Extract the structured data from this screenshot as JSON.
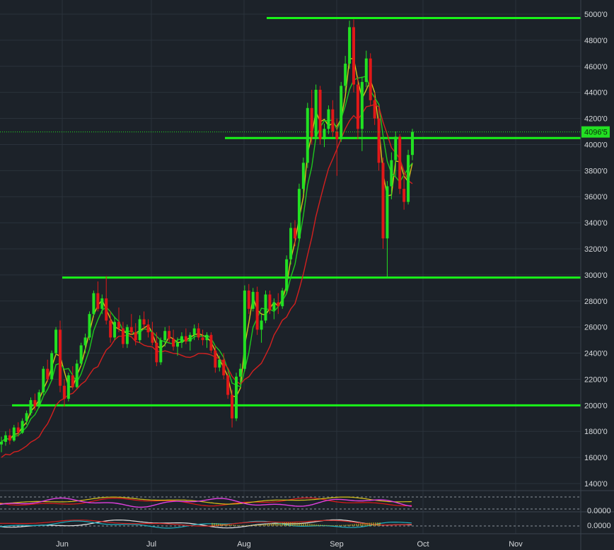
{
  "chart_data": {
    "type": "candlestick",
    "instrument": "",
    "ylim": [
      1300,
      5050
    ],
    "y_ticks": [
      1400,
      1600,
      1800,
      2000,
      2200,
      2400,
      2600,
      2800,
      3000,
      3200,
      3400,
      3600,
      3800,
      4000,
      4200,
      4400,
      4600,
      4800,
      5000
    ],
    "y_tick_labels": [
      "1400'0",
      "1600'0",
      "1800'0",
      "2000'0",
      "2200'0",
      "2400'0",
      "2600'0",
      "2800'0",
      "3000'0",
      "3200'0",
      "3400'0",
      "3600'0",
      "3800'0",
      "4000'0",
      "4200'0",
      "4400'0",
      "4600'0",
      "4800'0",
      "5000'0"
    ],
    "x_tick_labels": [
      "Jun",
      "Jul",
      "Aug",
      "Sep",
      "Oct",
      "Nov"
    ],
    "last_price": 4096.5,
    "last_price_label": "4096'5",
    "grid": true,
    "colors": {
      "background": "#1c2229",
      "grid": "#2a323b",
      "up": "#22e022",
      "down": "#e01818",
      "level_line": "#19f219",
      "ma_fast": "#d8c21a",
      "ma_mid": "#1ec71e",
      "ma_slow": "#d4201f"
    },
    "horizontal_levels": [
      {
        "price": 4970
      },
      {
        "price": 4050
      },
      {
        "price": 2980
      },
      {
        "price": 2000
      }
    ],
    "candles_ohlc": [
      [
        1700,
        1760,
        1640,
        1720
      ],
      [
        1720,
        1800,
        1690,
        1770
      ],
      [
        1770,
        1820,
        1700,
        1730
      ],
      [
        1730,
        1850,
        1720,
        1830
      ],
      [
        1830,
        1870,
        1760,
        1790
      ],
      [
        1790,
        1900,
        1780,
        1880
      ],
      [
        1880,
        1960,
        1850,
        1940
      ],
      [
        1940,
        2060,
        1920,
        2040
      ],
      [
        2040,
        2090,
        1960,
        1990
      ],
      [
        1990,
        2120,
        1980,
        2100
      ],
      [
        2100,
        2300,
        2080,
        2280
      ],
      [
        2280,
        2350,
        2180,
        2200
      ],
      [
        2200,
        2420,
        2190,
        2400
      ],
      [
        2400,
        2600,
        2380,
        2580
      ],
      [
        2580,
        2650,
        2100,
        2150
      ],
      [
        2150,
        2200,
        1990,
        2050
      ],
      [
        2050,
        2250,
        2030,
        2230
      ],
      [
        2230,
        2300,
        2120,
        2140
      ],
      [
        2140,
        2350,
        2130,
        2320
      ],
      [
        2320,
        2480,
        2300,
        2460
      ],
      [
        2460,
        2550,
        2400,
        2520
      ],
      [
        2520,
        2720,
        2500,
        2700
      ],
      [
        2700,
        2880,
        2680,
        2860
      ],
      [
        2860,
        2950,
        2720,
        2740
      ],
      [
        2740,
        2850,
        2700,
        2820
      ],
      [
        2820,
        2990,
        2620,
        2650
      ],
      [
        2650,
        2720,
        2480,
        2520
      ],
      [
        2520,
        2680,
        2500,
        2640
      ],
      [
        2640,
        2750,
        2560,
        2590
      ],
      [
        2590,
        2640,
        2440,
        2470
      ],
      [
        2470,
        2620,
        2440,
        2600
      ],
      [
        2600,
        2700,
        2540,
        2560
      ],
      [
        2560,
        2630,
        2460,
        2500
      ],
      [
        2500,
        2690,
        2480,
        2660
      ],
      [
        2660,
        2720,
        2580,
        2620
      ],
      [
        2620,
        2660,
        2520,
        2560
      ],
      [
        2560,
        2640,
        2460,
        2480
      ],
      [
        2480,
        2560,
        2300,
        2330
      ],
      [
        2330,
        2520,
        2310,
        2500
      ],
      [
        2500,
        2600,
        2450,
        2570
      ],
      [
        2570,
        2610,
        2480,
        2510
      ],
      [
        2510,
        2580,
        2420,
        2450
      ],
      [
        2450,
        2520,
        2380,
        2480
      ],
      [
        2480,
        2560,
        2440,
        2530
      ],
      [
        2530,
        2590,
        2470,
        2490
      ],
      [
        2490,
        2560,
        2420,
        2540
      ],
      [
        2540,
        2620,
        2500,
        2590
      ],
      [
        2590,
        2630,
        2500,
        2520
      ],
      [
        2520,
        2580,
        2460,
        2500
      ],
      [
        2500,
        2560,
        2440,
        2540
      ],
      [
        2540,
        2560,
        2400,
        2420
      ],
      [
        2420,
        2460,
        2250,
        2290
      ],
      [
        2290,
        2380,
        2260,
        2350
      ],
      [
        2350,
        2400,
        2200,
        2230
      ],
      [
        2230,
        2260,
        2050,
        2080
      ],
      [
        2080,
        2120,
        1830,
        1900
      ],
      [
        1900,
        2250,
        1880,
        2220
      ],
      [
        2220,
        2320,
        2150,
        2280
      ],
      [
        2280,
        2920,
        2260,
        2880
      ],
      [
        2880,
        2930,
        2700,
        2740
      ],
      [
        2740,
        2900,
        2720,
        2870
      ],
      [
        2870,
        2910,
        2540,
        2580
      ],
      [
        2580,
        2700,
        2480,
        2650
      ],
      [
        2650,
        2880,
        2630,
        2850
      ],
      [
        2850,
        2880,
        2700,
        2730
      ],
      [
        2730,
        2820,
        2660,
        2790
      ],
      [
        2790,
        2860,
        2700,
        2760
      ],
      [
        2760,
        2900,
        2740,
        2880
      ],
      [
        2880,
        3150,
        2860,
        3120
      ],
      [
        3120,
        3400,
        3080,
        3360
      ],
      [
        3360,
        3420,
        3220,
        3280
      ],
      [
        3280,
        3700,
        3260,
        3660
      ],
      [
        3660,
        3900,
        3620,
        3860
      ],
      [
        3860,
        4320,
        3820,
        4280
      ],
      [
        4280,
        4420,
        4000,
        4060
      ],
      [
        4060,
        4460,
        4040,
        4420
      ],
      [
        4420,
        4450,
        4000,
        4040
      ],
      [
        4040,
        4160,
        3980,
        4120
      ],
      [
        4120,
        4300,
        4080,
        4270
      ],
      [
        4270,
        4340,
        4060,
        4100
      ],
      [
        4100,
        4200,
        3760,
        4040
      ],
      [
        4040,
        4480,
        4020,
        4450
      ],
      [
        4450,
        4680,
        4400,
        4620
      ],
      [
        4620,
        4950,
        4580,
        4900
      ],
      [
        4900,
        4960,
        4400,
        4460
      ],
      [
        4460,
        4520,
        4040,
        4120
      ],
      [
        4120,
        4520,
        3950,
        4480
      ],
      [
        4480,
        4720,
        4440,
        4660
      ],
      [
        4660,
        4700,
        4300,
        4340
      ],
      [
        4340,
        4400,
        4150,
        4200
      ],
      [
        4200,
        4280,
        3800,
        3860
      ],
      [
        3860,
        3900,
        3200,
        3280
      ],
      [
        3280,
        3720,
        2980,
        3680
      ],
      [
        3680,
        3940,
        3580,
        3880
      ],
      [
        3880,
        4100,
        3760,
        4060
      ],
      [
        4060,
        4080,
        3620,
        3660
      ],
      [
        3660,
        3780,
        3500,
        3560
      ],
      [
        3560,
        3960,
        3540,
        3920
      ],
      [
        3920,
        4120,
        3880,
        4096.5
      ]
    ],
    "ma_periods_note": "",
    "indicator_panels": [
      {
        "name": "",
        "tick_labels": [],
        "colors": [
          "#e01818",
          "#d8c21a",
          "#e040e0"
        ]
      },
      {
        "name": "",
        "tick_labels": [
          "0.0000"
        ],
        "colors": [
          "#e8e8e8",
          "#20b0c0",
          "#d4201f",
          "#d8c21a"
        ]
      }
    ],
    "indicator_tick_labels": [
      "0.0000",
      "0.0000"
    ]
  }
}
